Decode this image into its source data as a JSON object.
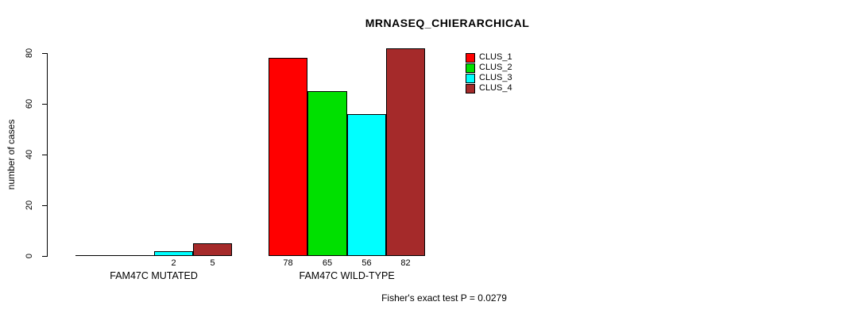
{
  "chart_data": {
    "type": "bar",
    "title": "MRNASEQ_CHIERARCHICAL",
    "ylabel": "number of cases",
    "ylim": [
      0,
      80
    ],
    "yticks": [
      0,
      20,
      40,
      60,
      80
    ],
    "grid": false,
    "legend_position": "top-right-inside",
    "categories": [
      "FAM47C MUTATED",
      "FAM47C WILD-TYPE"
    ],
    "series": [
      {
        "name": "CLUS_1",
        "color": "#FF0000",
        "values": [
          0,
          78
        ]
      },
      {
        "name": "CLUS_2",
        "color": "#00E000",
        "values": [
          0,
          65
        ]
      },
      {
        "name": "CLUS_3",
        "color": "#00FFFF",
        "values": [
          2,
          56
        ]
      },
      {
        "name": "CLUS_4",
        "color": "#A52A2A",
        "values": [
          5,
          82
        ]
      }
    ],
    "groups": [
      {
        "label": "FAM47C MUTATED",
        "values": [
          0,
          0,
          2,
          5
        ],
        "bar_labels": [
          "",
          "",
          "2",
          "5"
        ]
      },
      {
        "label": "FAM47C WILD-TYPE",
        "values": [
          78,
          65,
          56,
          82
        ],
        "bar_labels": [
          "78",
          "65",
          "56",
          "82"
        ]
      }
    ],
    "annotation": "Fisher's exact test P = 0.0279"
  }
}
